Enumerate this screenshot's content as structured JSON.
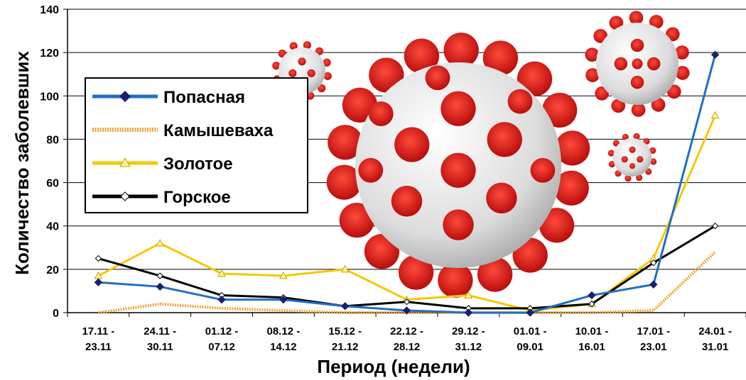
{
  "chart_data": {
    "type": "line",
    "xlabel": "Период (недели)",
    "ylabel": "Количество заболевших",
    "ylim": [
      0,
      140
    ],
    "yticks": [
      0,
      20,
      40,
      60,
      80,
      100,
      120,
      140
    ],
    "grid": true,
    "legend_position": "top-left",
    "categories": [
      [
        "17.11 -",
        "23.11"
      ],
      [
        "24.11 -",
        "30.11"
      ],
      [
        "01.12 -",
        "07.12"
      ],
      [
        "08.12 -",
        "14.12"
      ],
      [
        "15.12 -",
        "21.12"
      ],
      [
        "22.12 -",
        "28.12"
      ],
      [
        "29.12 -",
        "31.12"
      ],
      [
        "01.01 -",
        "09.01"
      ],
      [
        "10.01 -",
        "16.01"
      ],
      [
        "17.01 -",
        "23.01"
      ],
      [
        "24.01 -",
        "31.01"
      ]
    ],
    "series": [
      {
        "name": "Попасная",
        "color": "#1f6fc4",
        "marker": "diamond-filled",
        "values": [
          14,
          12,
          6,
          6,
          3,
          1,
          0,
          0,
          8,
          13,
          119
        ]
      },
      {
        "name": "Камышеваха",
        "color": "#f0a43a",
        "marker": "none",
        "style": "dotted-band",
        "values": [
          0,
          4,
          2,
          1,
          0,
          0,
          0,
          0,
          0,
          1,
          28
        ]
      },
      {
        "name": "Золотое",
        "color": "#f5c800",
        "marker": "triangle",
        "values": [
          17,
          32,
          18,
          17,
          20,
          6,
          8,
          1,
          4,
          25,
          91
        ]
      },
      {
        "name": "Горское",
        "color": "#000000",
        "marker": "diamond-open",
        "values": [
          25,
          17,
          8,
          7,
          3,
          5,
          2,
          2,
          4,
          23,
          40
        ]
      }
    ]
  },
  "decor": {
    "virus_color": "#e02020",
    "virus_body": "#d8d8d8"
  }
}
